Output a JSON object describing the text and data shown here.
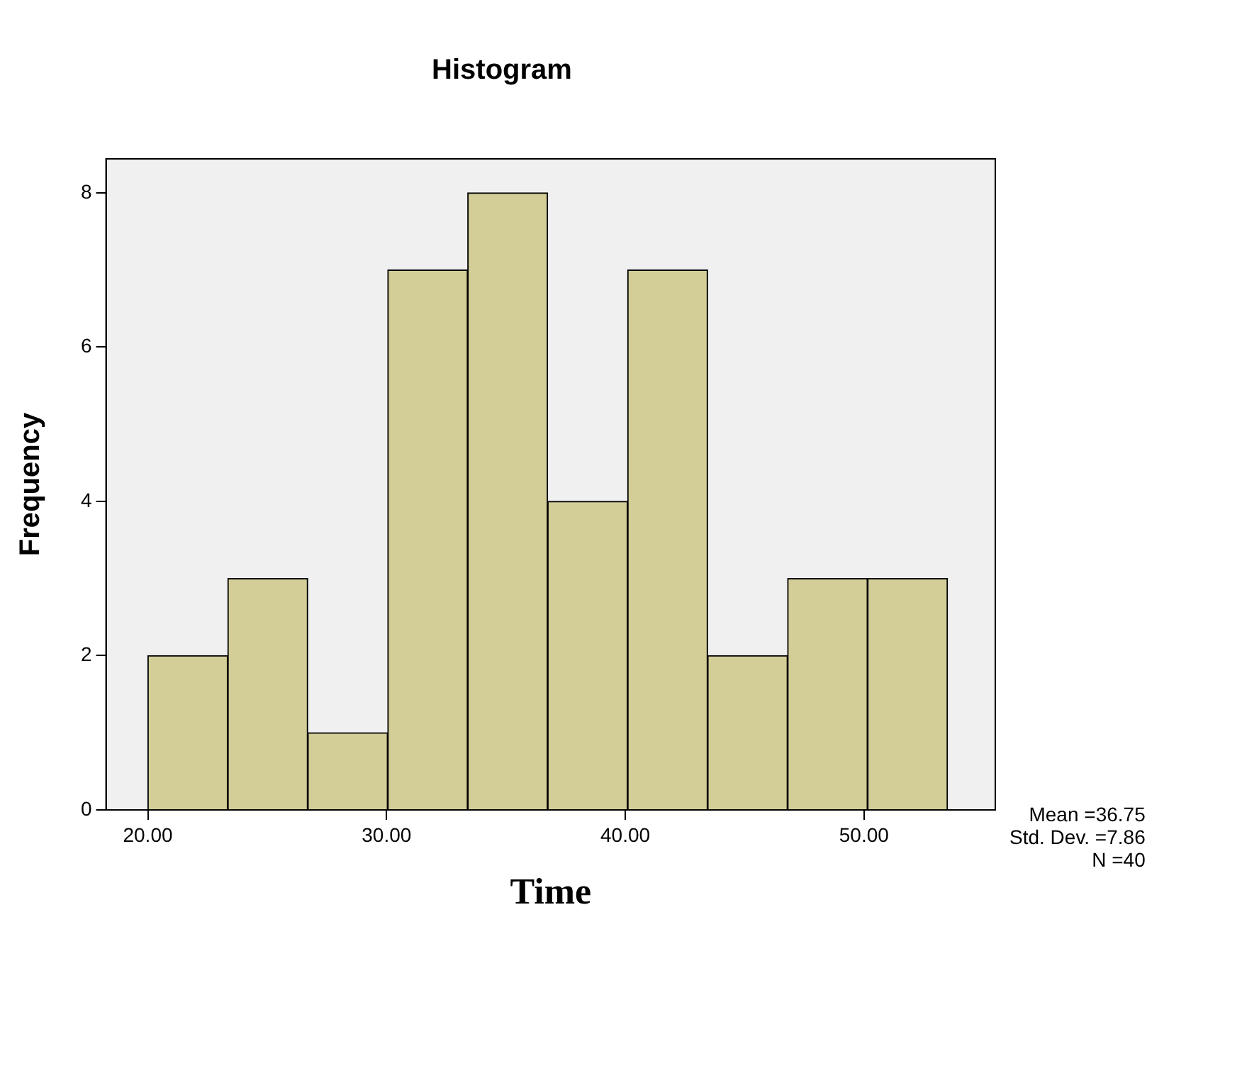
{
  "chart_data": {
    "type": "histogram",
    "title": "Histogram",
    "xlabel": "Time",
    "ylabel": "Frequency",
    "bins": [
      20,
      23.35,
      26.7,
      30.05,
      33.4,
      36.75,
      40.1,
      43.45,
      46.8,
      50.15,
      53.5
    ],
    "values": [
      2,
      3,
      1,
      7,
      8,
      4,
      7,
      2,
      3,
      3
    ],
    "color": "#d3ce97",
    "xlim": [
      18.25,
      55.5
    ],
    "xticks": [
      {
        "value": 20,
        "label": "20.00"
      },
      {
        "value": 30,
        "label": "30.00"
      },
      {
        "value": 40,
        "label": "40.00"
      },
      {
        "value": 50,
        "label": "50.00"
      }
    ],
    "ylim": [
      0,
      8.44
    ],
    "yticks": [
      0,
      2,
      4,
      6,
      8
    ],
    "grid": false,
    "legend": false,
    "annotations": [
      "Mean =36.75",
      "Std. Dev. =7.86",
      "N =40"
    ]
  }
}
